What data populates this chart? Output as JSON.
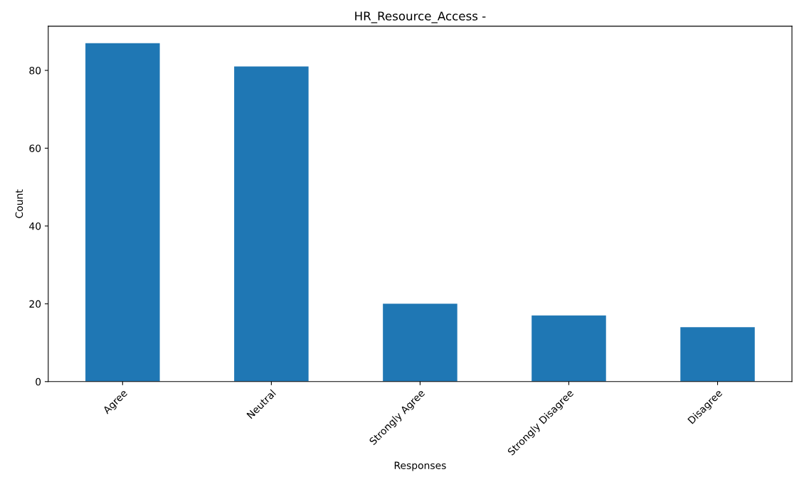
{
  "chart_data": {
    "type": "bar",
    "title": "HR_Resource_Access -",
    "xlabel": "Responses",
    "ylabel": "Count",
    "categories": [
      "Agree",
      "Neutral",
      "Strongly Agree",
      "Strongly Disagree",
      "Disagree"
    ],
    "values": [
      87,
      81,
      20,
      17,
      14
    ],
    "color": "#1f77b4",
    "ylim": [
      0,
      91.35
    ],
    "yticks": [
      0,
      20,
      40,
      60,
      80
    ],
    "grid": false
  }
}
